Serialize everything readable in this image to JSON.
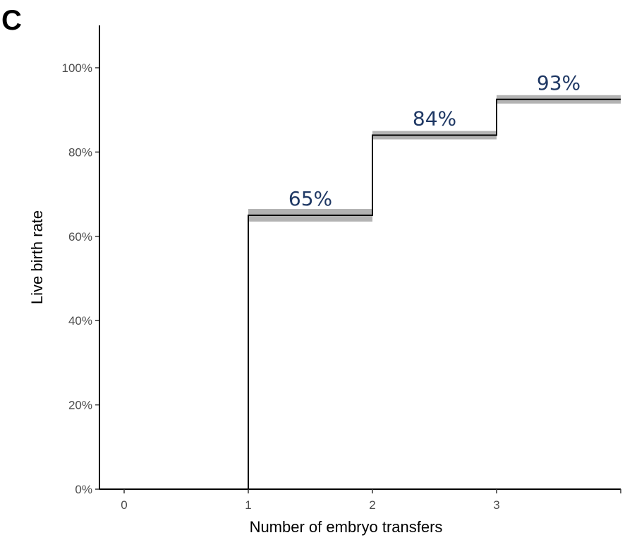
{
  "panel_label": "C",
  "chart_data": {
    "type": "line",
    "step": true,
    "xlabel": "Number of embryo transfers",
    "ylabel": "Live birth rate",
    "xlim": [
      -0.2,
      4.2
    ],
    "ylim": [
      0,
      1.1
    ],
    "x_ticks": [
      0,
      1,
      2,
      3,
      4
    ],
    "x_tick_labels": [
      "0",
      "1",
      "2",
      "3",
      ""
    ],
    "y_ticks": [
      0,
      0.2,
      0.4,
      0.6,
      0.8,
      1.0
    ],
    "y_tick_labels": [
      "0%",
      "20%",
      "40%",
      "60%",
      "80%",
      "100%"
    ],
    "series": [
      {
        "x": [
          1,
          2,
          3,
          4
        ],
        "y": [
          0.65,
          0.84,
          0.925,
          0.925
        ],
        "ci_lower": [
          0.635,
          0.83,
          0.915
        ],
        "ci_upper": [
          0.665,
          0.85,
          0.935
        ]
      }
    ],
    "annotations": [
      {
        "x": 1.5,
        "y": 0.65,
        "text": "65%"
      },
      {
        "x": 2.5,
        "y": 0.84,
        "text": "84%"
      },
      {
        "x": 3.5,
        "y": 0.925,
        "text": "93%"
      }
    ],
    "colors": {
      "line": "#000000",
      "ci": "#b3b3b3",
      "annotation": "#1f3864",
      "axis": "#000000"
    },
    "grid": false,
    "legend": "none"
  }
}
